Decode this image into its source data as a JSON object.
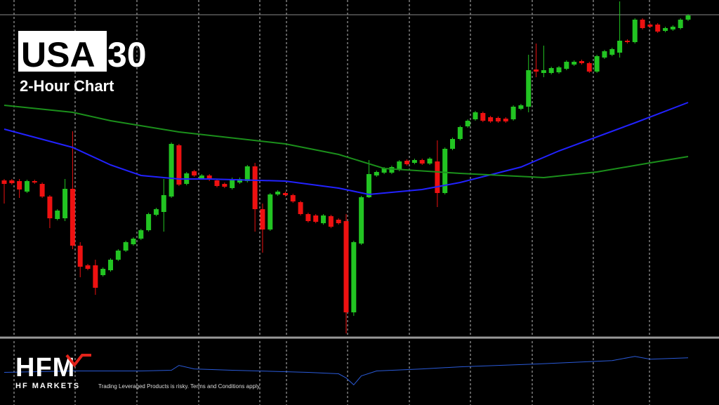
{
  "chart_data": {
    "type": "candlestick",
    "title_prefix": "USA",
    "title_suffix": "30",
    "subtitle": "2-Hour Chart",
    "logo": "HFM",
    "brand": "HF MARKETS",
    "disclaimer": "Trading Leveraged Products is risky. Terms and Conditions apply.",
    "ylim": [
      0,
      480
    ],
    "up_color": "#22c422",
    "down_color": "#ee1111",
    "ohlc": [
      [
        223,
        225,
        190,
        218
      ],
      [
        223,
        225,
        217,
        219
      ],
      [
        222,
        225,
        198,
        210
      ],
      [
        207,
        224,
        205,
        222
      ],
      [
        222,
        224,
        218,
        220
      ],
      [
        218,
        220,
        198,
        200
      ],
      [
        200,
        202,
        155,
        169
      ],
      [
        168,
        182,
        166,
        180
      ],
      [
        169,
        225,
        165,
        211
      ],
      [
        211,
        293,
        125,
        130
      ],
      [
        130,
        135,
        85,
        100
      ],
      [
        102,
        104,
        95,
        97
      ],
      [
        102,
        110,
        60,
        70
      ],
      [
        88,
        99,
        86,
        97
      ],
      [
        95,
        112,
        93,
        110
      ],
      [
        110,
        125,
        108,
        123
      ],
      [
        123,
        137,
        121,
        135
      ],
      [
        132,
        142,
        130,
        140
      ],
      [
        140,
        154,
        138,
        152
      ],
      [
        152,
        177,
        150,
        175
      ],
      [
        174,
        184,
        172,
        182
      ],
      [
        178,
        225,
        150,
        202
      ],
      [
        200,
        277,
        198,
        275
      ],
      [
        273,
        275,
        215,
        217
      ],
      [
        218,
        235,
        216,
        233
      ],
      [
        236,
        238,
        228,
        230
      ],
      [
        226,
        232,
        224,
        230
      ],
      [
        230,
        232,
        222,
        224
      ],
      [
        223,
        225,
        213,
        215
      ],
      [
        218,
        220,
        212,
        214
      ],
      [
        212,
        227,
        210,
        225
      ],
      [
        220,
        227,
        218,
        225
      ],
      [
        222,
        245,
        220,
        243
      ],
      [
        243,
        248,
        150,
        182
      ],
      [
        182,
        190,
        120,
        153
      ],
      [
        153,
        205,
        151,
        203
      ],
      [
        203,
        209,
        201,
        207
      ],
      [
        205,
        207,
        200,
        202
      ],
      [
        202,
        204,
        191,
        193
      ],
      [
        192,
        194,
        173,
        175
      ],
      [
        175,
        177,
        163,
        165
      ],
      [
        173,
        175,
        162,
        164
      ],
      [
        162,
        175,
        160,
        173
      ],
      [
        172,
        174,
        155,
        157
      ],
      [
        167,
        169,
        160,
        162
      ],
      [
        165,
        175,
        5,
        35
      ],
      [
        35,
        137,
        30,
        135
      ],
      [
        133,
        201,
        131,
        199
      ],
      [
        199,
        252,
        198,
        232
      ],
      [
        230,
        237,
        228,
        235
      ],
      [
        234,
        242,
        232,
        240
      ],
      [
        234,
        244,
        232,
        242
      ],
      [
        238,
        252,
        236,
        250
      ],
      [
        251,
        253,
        244,
        246
      ],
      [
        248,
        254,
        246,
        252
      ],
      [
        252,
        254,
        245,
        247
      ],
      [
        247,
        256,
        245,
        254
      ],
      [
        250,
        280,
        185,
        205
      ],
      [
        205,
        270,
        203,
        268
      ],
      [
        268,
        284,
        266,
        282
      ],
      [
        282,
        301,
        280,
        299
      ],
      [
        300,
        310,
        298,
        308
      ],
      [
        310,
        322,
        308,
        320
      ],
      [
        319,
        321,
        306,
        308
      ],
      [
        313,
        315,
        305,
        307
      ],
      [
        312,
        314,
        305,
        307
      ],
      [
        311,
        313,
        305,
        307
      ],
      [
        310,
        330,
        308,
        328
      ],
      [
        325,
        332,
        323,
        330
      ],
      [
        328,
        402,
        320,
        380
      ],
      [
        381,
        418,
        370,
        378
      ],
      [
        376,
        415,
        370,
        380
      ],
      [
        376,
        385,
        374,
        383
      ],
      [
        377,
        386,
        375,
        384
      ],
      [
        382,
        394,
        380,
        392
      ],
      [
        388,
        394,
        386,
        392
      ],
      [
        393,
        395,
        388,
        390
      ],
      [
        390,
        392,
        376,
        378
      ],
      [
        378,
        402,
        376,
        400
      ],
      [
        398,
        409,
        396,
        407
      ],
      [
        402,
        412,
        400,
        410
      ],
      [
        405,
        478,
        398,
        422
      ],
      [
        422,
        424,
        418,
        420
      ],
      [
        420,
        454,
        418,
        452
      ],
      [
        452,
        454,
        438,
        440
      ],
      [
        445,
        447,
        440,
        442
      ],
      [
        445,
        447,
        433,
        435
      ],
      [
        436,
        442,
        434,
        440
      ],
      [
        438,
        444,
        436,
        442
      ],
      [
        440,
        454,
        438,
        452
      ],
      [
        452,
        460,
        450,
        458
      ]
    ],
    "series": [
      {
        "color": "#2222ff",
        "x": [
          0,
          9,
          14,
          18,
          23,
          27,
          37,
          44,
          48,
          55,
          60,
          68,
          73,
          83,
          90
        ],
        "values": [
          296,
          270,
          245,
          230,
          225,
          225,
          222,
          212,
          203,
          210,
          220,
          242,
          265,
          305,
          334
        ]
      },
      {
        "color": "#1b8f1b",
        "x": [
          0,
          9,
          14,
          23,
          37,
          44,
          50,
          60,
          71,
          78,
          85,
          90
        ],
        "values": [
          330,
          320,
          308,
          292,
          275,
          260,
          240,
          233,
          227,
          235,
          248,
          257
        ]
      }
    ],
    "indicator": {
      "color": "#2a5ad8",
      "ylim": [
        0,
        92
      ],
      "x": [
        0,
        9,
        18,
        22,
        23,
        25,
        30,
        40,
        44,
        45,
        46,
        47,
        49,
        55,
        60,
        70,
        80,
        83,
        85,
        90
      ],
      "values": [
        47,
        49,
        49,
        50,
        57,
        52,
        50,
        47,
        45,
        39,
        29,
        42,
        49,
        52,
        55,
        59,
        64,
        70,
        66,
        68
      ]
    }
  }
}
